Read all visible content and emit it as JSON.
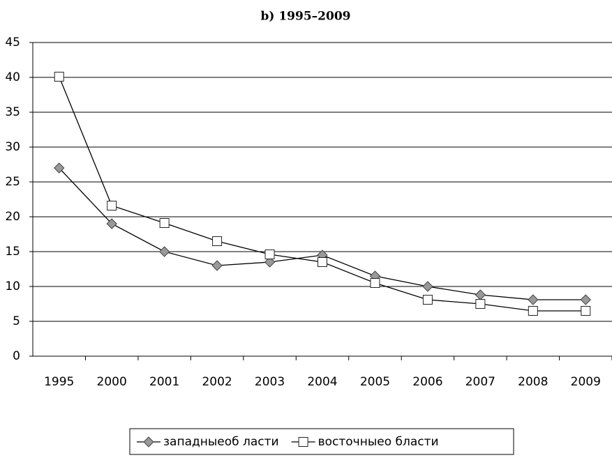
{
  "chart_data": {
    "type": "line",
    "title": "b) 1995–2009",
    "categories": [
      "1995",
      "2000",
      "2001",
      "2002",
      "2003",
      "2004",
      "2005",
      "2006",
      "2007",
      "2008",
      "2009"
    ],
    "series": [
      {
        "name": "западныеоб ласти",
        "color": "#999999",
        "marker": "diamond",
        "values": [
          27,
          19,
          15,
          13,
          13.5,
          14.5,
          11.5,
          10,
          8.8,
          8.1,
          8.1
        ]
      },
      {
        "name": "восточныео бласти",
        "color": "#ffffff",
        "marker": "square",
        "values": [
          40.1,
          21.6,
          19.1,
          16.5,
          14.6,
          13.5,
          10.5,
          8.1,
          7.5,
          6.5,
          6.5
        ]
      }
    ],
    "ylim": [
      0,
      45
    ],
    "yticks": [
      0,
      5,
      10,
      15,
      20,
      25,
      30,
      35,
      40,
      45
    ],
    "grid": true,
    "legend": "bottom"
  }
}
